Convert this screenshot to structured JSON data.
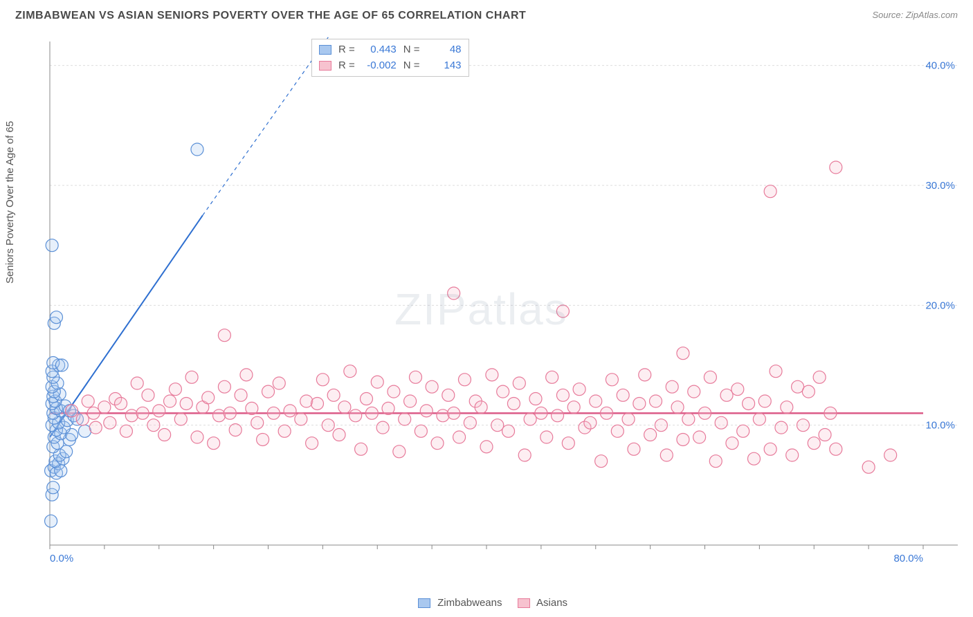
{
  "title": "ZIMBABWEAN VS ASIAN SENIORS POVERTY OVER THE AGE OF 65 CORRELATION CHART",
  "source_label": "Source: ZipAtlas.com",
  "y_axis_label": "Seniors Poverty Over the Age of 65",
  "watermark": "ZIPatlas",
  "chart": {
    "type": "scatter",
    "background_color": "#ffffff",
    "grid_color": "#dddddd",
    "grid_dash": "3,3",
    "axis_color": "#888888",
    "tick_color": "#888888",
    "axis_label_color": "#3a78d6",
    "xlim": [
      0,
      80
    ],
    "ylim": [
      0,
      42
    ],
    "xtick_step": 5,
    "xtick_labels": [
      {
        "v": 0,
        "t": "0.0%"
      },
      {
        "v": 80,
        "t": "80.0%"
      }
    ],
    "ytick_step": 10,
    "ytick_labels": [
      {
        "v": 10,
        "t": "10.0%"
      },
      {
        "v": 20,
        "t": "20.0%"
      },
      {
        "v": 30,
        "t": "30.0%"
      },
      {
        "v": 40,
        "t": "40.0%"
      }
    ],
    "marker_radius": 9,
    "marker_stroke_width": 1.2,
    "marker_fill_opacity": 0.28
  },
  "series": [
    {
      "name": "Zimbabweans",
      "color_fill": "#a9c8ef",
      "color_stroke": "#5a8fd6",
      "R": "0.443",
      "N": "48",
      "trend": {
        "x1": 0,
        "y1": 9,
        "x2": 14,
        "y2": 27.5,
        "dash_ext_x": 26,
        "dash_ext_y": 43,
        "color": "#2e6fd0",
        "width": 2
      },
      "points": [
        [
          0.2,
          4.2
        ],
        [
          0.3,
          4.8
        ],
        [
          0.1,
          6.2
        ],
        [
          0.4,
          6.5
        ],
        [
          0.6,
          6.0
        ],
        [
          0.8,
          6.8
        ],
        [
          1.0,
          6.2
        ],
        [
          0.5,
          7.0
        ],
        [
          1.2,
          7.2
        ],
        [
          0.9,
          7.5
        ],
        [
          1.5,
          7.8
        ],
        [
          0.3,
          8.2
        ],
        [
          0.7,
          8.5
        ],
        [
          1.8,
          8.8
        ],
        [
          0.4,
          9.0
        ],
        [
          1.0,
          9.3
        ],
        [
          2.0,
          9.2
        ],
        [
          0.6,
          9.6
        ],
        [
          1.3,
          9.8
        ],
        [
          0.2,
          10.0
        ],
        [
          0.8,
          10.2
        ],
        [
          1.6,
          10.4
        ],
        [
          0.4,
          10.6
        ],
        [
          2.2,
          10.8
        ],
        [
          0.3,
          11.0
        ],
        [
          1.0,
          11.2
        ],
        [
          0.6,
          11.4
        ],
        [
          0.2,
          11.8
        ],
        [
          1.4,
          11.6
        ],
        [
          0.5,
          12.0
        ],
        [
          0.3,
          12.4
        ],
        [
          0.9,
          12.6
        ],
        [
          0.4,
          12.8
        ],
        [
          0.2,
          13.2
        ],
        [
          0.7,
          13.5
        ],
        [
          0.3,
          14.0
        ],
        [
          0.2,
          14.5
        ],
        [
          0.8,
          15.0
        ],
        [
          0.3,
          15.2
        ],
        [
          1.1,
          15.0
        ],
        [
          0.4,
          18.5
        ],
        [
          0.6,
          19.0
        ],
        [
          0.2,
          25.0
        ],
        [
          3.2,
          9.5
        ],
        [
          2.5,
          10.5
        ],
        [
          1.8,
          11.2
        ],
        [
          0.1,
          2.0
        ],
        [
          13.5,
          33.0
        ]
      ]
    },
    {
      "name": "Asians",
      "color_fill": "#f7c2cf",
      "color_stroke": "#e77a9a",
      "R": "-0.002",
      "N": "143",
      "trend": {
        "x1": 0,
        "y1": 11.0,
        "x2": 80,
        "y2": 11.0,
        "color": "#db5a87",
        "width": 2.5
      },
      "points": [
        [
          2,
          11.2
        ],
        [
          3,
          10.5
        ],
        [
          3.5,
          12.0
        ],
        [
          4,
          11.0
        ],
        [
          4.2,
          9.8
        ],
        [
          5,
          11.5
        ],
        [
          5.5,
          10.2
        ],
        [
          6,
          12.2
        ],
        [
          6.5,
          11.8
        ],
        [
          7,
          9.5
        ],
        [
          7.5,
          10.8
        ],
        [
          8,
          13.5
        ],
        [
          8.5,
          11.0
        ],
        [
          9,
          12.5
        ],
        [
          9.5,
          10.0
        ],
        [
          10,
          11.2
        ],
        [
          10.5,
          9.2
        ],
        [
          11,
          12.0
        ],
        [
          11.5,
          13.0
        ],
        [
          12,
          10.5
        ],
        [
          12.5,
          11.8
        ],
        [
          13,
          14.0
        ],
        [
          13.5,
          9.0
        ],
        [
          14,
          11.5
        ],
        [
          14.5,
          12.3
        ],
        [
          15,
          8.5
        ],
        [
          15.5,
          10.8
        ],
        [
          16,
          13.2
        ],
        [
          16.5,
          11.0
        ],
        [
          17,
          9.6
        ],
        [
          17.5,
          12.5
        ],
        [
          18,
          14.2
        ],
        [
          18.5,
          11.4
        ],
        [
          19,
          10.2
        ],
        [
          19.5,
          8.8
        ],
        [
          20,
          12.8
        ],
        [
          20.5,
          11.0
        ],
        [
          21,
          13.5
        ],
        [
          21.5,
          9.5
        ],
        [
          22,
          11.2
        ],
        [
          16,
          17.5
        ],
        [
          23,
          10.5
        ],
        [
          23.5,
          12.0
        ],
        [
          24,
          8.5
        ],
        [
          24.5,
          11.8
        ],
        [
          25,
          13.8
        ],
        [
          25.5,
          10.0
        ],
        [
          26,
          12.5
        ],
        [
          26.5,
          9.2
        ],
        [
          27,
          11.5
        ],
        [
          27.5,
          14.5
        ],
        [
          28,
          10.8
        ],
        [
          28.5,
          8.0
        ],
        [
          29,
          12.2
        ],
        [
          29.5,
          11.0
        ],
        [
          30,
          13.6
        ],
        [
          30.5,
          9.8
        ],
        [
          31,
          11.4
        ],
        [
          31.5,
          12.8
        ],
        [
          32,
          7.8
        ],
        [
          32.5,
          10.5
        ],
        [
          33,
          12.0
        ],
        [
          33.5,
          14.0
        ],
        [
          34,
          9.5
        ],
        [
          34.5,
          11.2
        ],
        [
          35,
          13.2
        ],
        [
          35.5,
          8.5
        ],
        [
          36,
          10.8
        ],
        [
          36.5,
          12.5
        ],
        [
          37,
          11.0
        ],
        [
          37.5,
          9.0
        ],
        [
          38,
          13.8
        ],
        [
          38.5,
          10.2
        ],
        [
          39,
          12.0
        ],
        [
          39.5,
          11.5
        ],
        [
          40,
          8.2
        ],
        [
          40.5,
          14.2
        ],
        [
          41,
          10.0
        ],
        [
          41.5,
          12.8
        ],
        [
          42,
          9.5
        ],
        [
          42.5,
          11.8
        ],
        [
          43,
          13.5
        ],
        [
          43.5,
          7.5
        ],
        [
          44,
          10.5
        ],
        [
          44.5,
          12.2
        ],
        [
          45,
          11.0
        ],
        [
          45.5,
          9.0
        ],
        [
          46,
          14.0
        ],
        [
          46.5,
          10.8
        ],
        [
          47,
          12.5
        ],
        [
          47.5,
          8.5
        ],
        [
          48,
          11.5
        ],
        [
          48.5,
          13.0
        ],
        [
          49,
          9.8
        ],
        [
          49.5,
          10.2
        ],
        [
          50,
          12.0
        ],
        [
          50.5,
          7.0
        ],
        [
          51,
          11.0
        ],
        [
          51.5,
          13.8
        ],
        [
          52,
          9.5
        ],
        [
          52.5,
          12.5
        ],
        [
          53,
          10.5
        ],
        [
          53.5,
          8.0
        ],
        [
          54,
          11.8
        ],
        [
          54.5,
          14.2
        ],
        [
          55,
          9.2
        ],
        [
          55.5,
          12.0
        ],
        [
          56,
          10.0
        ],
        [
          56.5,
          7.5
        ],
        [
          57,
          13.2
        ],
        [
          57.5,
          11.5
        ],
        [
          58,
          8.8
        ],
        [
          47,
          19.5
        ],
        [
          58.5,
          10.5
        ],
        [
          59,
          12.8
        ],
        [
          59.5,
          9.0
        ],
        [
          60,
          11.0
        ],
        [
          60.5,
          14.0
        ],
        [
          61,
          7.0
        ],
        [
          61.5,
          10.2
        ],
        [
          62,
          12.5
        ],
        [
          62.5,
          8.5
        ],
        [
          63,
          13.0
        ],
        [
          63.5,
          9.5
        ],
        [
          64,
          11.8
        ],
        [
          64.5,
          7.2
        ],
        [
          65,
          10.5
        ],
        [
          65.5,
          12.0
        ],
        [
          66,
          8.0
        ],
        [
          66.5,
          14.5
        ],
        [
          67,
          9.8
        ],
        [
          67.5,
          11.5
        ],
        [
          68,
          7.5
        ],
        [
          68.5,
          13.2
        ],
        [
          37,
          21.0
        ],
        [
          69,
          10.0
        ],
        [
          69.5,
          12.8
        ],
        [
          70,
          8.5
        ],
        [
          70.5,
          14.0
        ],
        [
          71,
          9.2
        ],
        [
          71.5,
          11.0
        ],
        [
          58,
          16.0
        ],
        [
          72,
          8.0
        ],
        [
          75,
          6.5
        ],
        [
          77,
          7.5
        ],
        [
          66,
          29.5
        ],
        [
          72,
          31.5
        ]
      ]
    }
  ],
  "stats_box": {
    "R_label": "R =",
    "N_label": "N ="
  },
  "legend": {
    "series1_label": "Zimbabweans",
    "series2_label": "Asians"
  }
}
